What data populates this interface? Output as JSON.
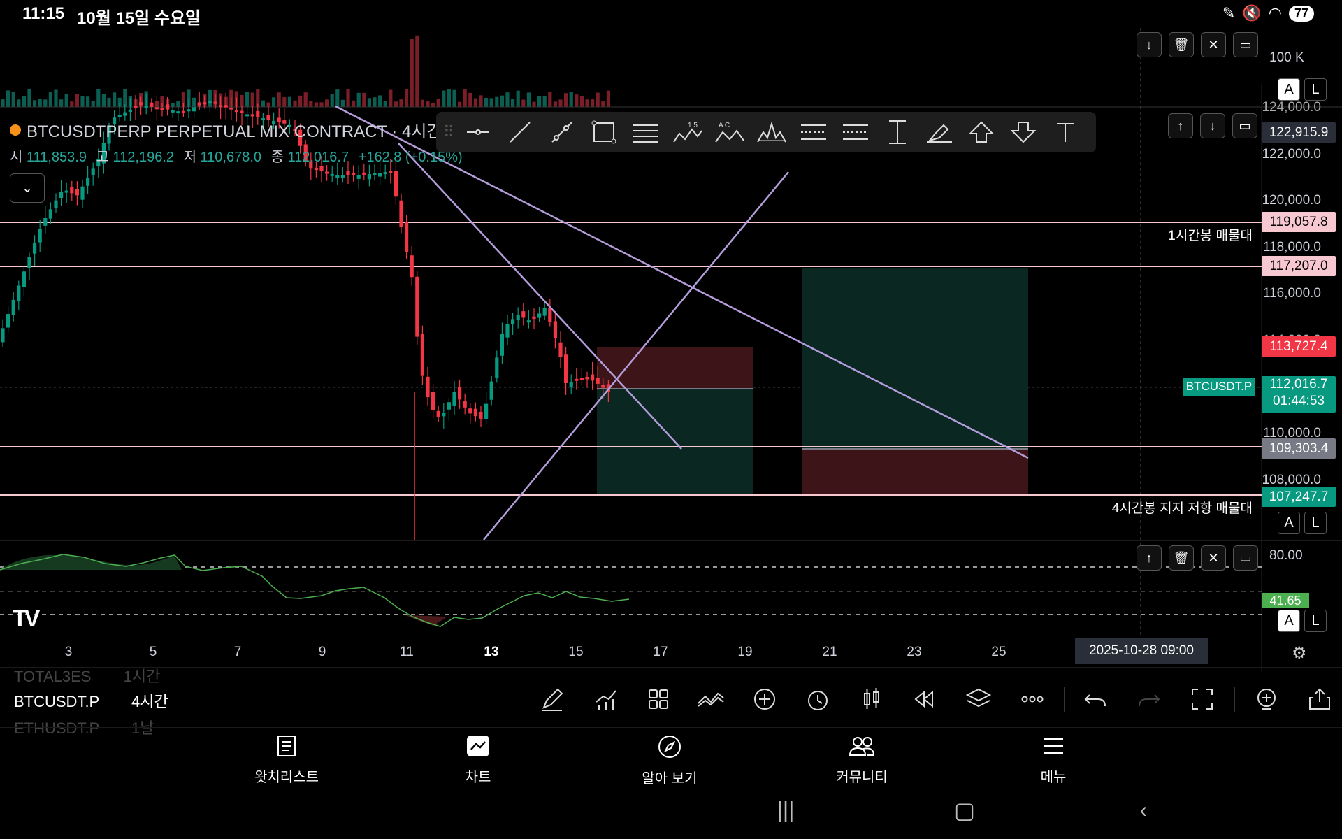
{
  "status_bar": {
    "time": "11:15",
    "date": "10월 15일 수요일",
    "battery": "77"
  },
  "symbol": {
    "title": "BTCUSDTPERP PERPETUAL MIX CONTRACT · 4시간 ·"
  },
  "ohlc": {
    "open_label": "시",
    "open": "111,853.9",
    "high_label": "고",
    "high": "112,196.2",
    "low_label": "저",
    "low": "110,678.0",
    "close_label": "종",
    "close": "112,016.7",
    "change": "+162.8 (+0.15%)"
  },
  "volume_axis": {
    "label": "100 K"
  },
  "price_axis": {
    "ticks": [
      "124,000.0",
      "122,000.0",
      "120,000.0",
      "118,000.0",
      "116,000.0",
      "114,000.0",
      "110,000.0",
      "108,000.0"
    ],
    "tags": [
      {
        "text": "122,915.9",
        "bg": "#2a2e39",
        "fg": "#ffffff"
      },
      {
        "text": "119,057.8",
        "bg": "#f8c8d0",
        "fg": "#000000"
      },
      {
        "text": "117,207.0",
        "bg": "#f8c8d0",
        "fg": "#000000"
      },
      {
        "text": "113,727.4",
        "bg": "#f23645",
        "fg": "#ffffff"
      },
      {
        "text": "109,303.4",
        "bg": "#787b86",
        "fg": "#ffffff"
      },
      {
        "text": "107,247.7",
        "bg": "#089981",
        "fg": "#ffffff"
      }
    ],
    "current": {
      "price": "112,016.7",
      "countdown": "01:44:53",
      "symbol_tag": "BTCUSDT.P",
      "color": "#089981"
    }
  },
  "zones": {
    "h1": "1시간봉 매물대",
    "h4": "4시간봉 지지 저항 매물대"
  },
  "rsi_axis": {
    "upper": "80.00",
    "value": "41.65",
    "value_color": "#4caf50"
  },
  "scale_buttons": {
    "auto": "A",
    "log": "L"
  },
  "x_axis": {
    "ticks": [
      "3",
      "5",
      "7",
      "9",
      "11",
      "13",
      "15",
      "17",
      "19",
      "21",
      "23",
      "25"
    ],
    "crosshair_date": "2025-10-28   09:00"
  },
  "watchlist": [
    {
      "symbol": "TOTAL3ES",
      "interval": "1시간"
    },
    {
      "symbol": "BTCUSDT.P",
      "interval": "4시간"
    },
    {
      "symbol": "ETHUSDT.P",
      "interval": "1날"
    }
  ],
  "bottom_nav": [
    {
      "label": "왓치리스트",
      "icon": "watchlist-icon"
    },
    {
      "label": "차트",
      "icon": "chart-icon"
    },
    {
      "label": "알아 보기",
      "icon": "compass-icon"
    },
    {
      "label": "커뮤니티",
      "icon": "community-icon"
    },
    {
      "label": "메뉴",
      "icon": "menu-icon"
    }
  ],
  "drawing_tools": [
    "horizontal-ray-icon",
    "trend-line-icon",
    "ray-icon",
    "rectangle-icon",
    "parallel-channel-icon",
    "elliott-wave-icon",
    "abcd-pattern-icon",
    "head-shoulders-icon",
    "long-position-icon",
    "short-position-icon",
    "price-range-icon",
    "brush-icon",
    "arrow-up-icon",
    "arrow-down-icon",
    "text-icon"
  ],
  "toolbar_numbers": {
    "elliott": "1 5",
    "abcd": "A C"
  },
  "colors": {
    "up": "#089981",
    "down": "#f23645",
    "level_line": "#f8c8d0",
    "trend_line": "#b39ddb",
    "background": "#000000"
  }
}
